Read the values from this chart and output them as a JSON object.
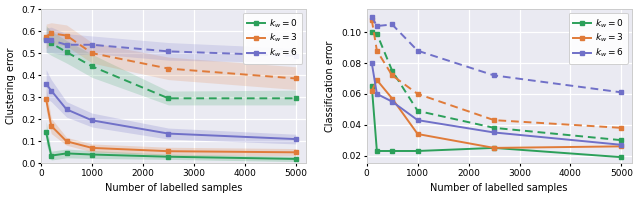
{
  "x": [
    100,
    200,
    500,
    1000,
    2500,
    5000
  ],
  "left_ylabel": "Clustering error",
  "right_ylabel": "Classification error",
  "xlabel": "Number of labelled samples",
  "colors": {
    "k0": "#2ca05a",
    "k3": "#e07b39",
    "k6": "#7070c8"
  },
  "clust_solid": {
    "k0": [
      0.14,
      0.035,
      0.045,
      0.04,
      0.03,
      0.02
    ],
    "k3": [
      0.29,
      0.17,
      0.1,
      0.07,
      0.055,
      0.05
    ],
    "k6": [
      0.36,
      0.33,
      0.245,
      0.195,
      0.135,
      0.11
    ]
  },
  "clust_solid_lo": {
    "k0": [
      0.09,
      0.015,
      0.025,
      0.022,
      0.018,
      0.008
    ],
    "k3": [
      0.24,
      0.135,
      0.082,
      0.052,
      0.037,
      0.035
    ],
    "k6": [
      0.295,
      0.28,
      0.21,
      0.165,
      0.11,
      0.088
    ]
  },
  "clust_solid_hi": {
    "k0": [
      0.19,
      0.055,
      0.065,
      0.058,
      0.042,
      0.032
    ],
    "k3": [
      0.34,
      0.205,
      0.118,
      0.088,
      0.073,
      0.067
    ],
    "k6": [
      0.425,
      0.38,
      0.28,
      0.228,
      0.16,
      0.132
    ]
  },
  "clust_dashed": {
    "k0": [
      0.565,
      0.545,
      0.505,
      0.44,
      0.295,
      0.295
    ],
    "k3": [
      0.575,
      0.59,
      0.58,
      0.5,
      0.43,
      0.385
    ],
    "k6": [
      0.558,
      0.558,
      0.538,
      0.538,
      0.508,
      0.488
    ]
  },
  "clust_dashed_lo": {
    "k0": [
      0.505,
      0.49,
      0.455,
      0.39,
      0.265,
      0.265
    ],
    "k3": [
      0.52,
      0.545,
      0.532,
      0.455,
      0.38,
      0.335
    ],
    "k6": [
      0.502,
      0.502,
      0.488,
      0.498,
      0.468,
      0.458
    ]
  },
  "clust_dashed_hi": {
    "k0": [
      0.625,
      0.6,
      0.558,
      0.495,
      0.328,
      0.332
    ],
    "k3": [
      0.632,
      0.638,
      0.628,
      0.548,
      0.482,
      0.438
    ],
    "k6": [
      0.614,
      0.618,
      0.588,
      0.578,
      0.548,
      0.522
    ]
  },
  "class_solid": {
    "k0": [
      0.065,
      0.023,
      0.023,
      0.023,
      0.025,
      0.019
    ],
    "k3": [
      0.062,
      0.069,
      0.057,
      0.034,
      0.025,
      0.026
    ],
    "k6": [
      0.08,
      0.06,
      0.055,
      0.043,
      0.035,
      0.027
    ]
  },
  "class_dashed": {
    "k0": [
      0.1,
      0.099,
      0.075,
      0.049,
      0.038,
      0.03
    ],
    "k3": [
      0.108,
      0.088,
      0.072,
      0.06,
      0.043,
      0.038
    ],
    "k6": [
      0.11,
      0.104,
      0.105,
      0.088,
      0.072,
      0.061
    ]
  },
  "legend_labels": [
    "$k_w = 0$",
    "$k_w = 3$",
    "$k_w = 6$"
  ],
  "ax_bg": "#eaeaf2",
  "grid_color": "#ffffff",
  "fig_bg": "#ffffff",
  "ylim_left": [
    0,
    0.7
  ],
  "ylim_right": [
    0.015,
    0.115
  ],
  "xlim": [
    0,
    5200
  ],
  "yticks_left": [
    0.0,
    0.1,
    0.2,
    0.3,
    0.4,
    0.5,
    0.6,
    0.7
  ],
  "yticks_right": [
    0.02,
    0.04,
    0.06,
    0.08,
    0.1
  ],
  "xticks": [
    0,
    1000,
    2000,
    3000,
    4000,
    5000
  ]
}
